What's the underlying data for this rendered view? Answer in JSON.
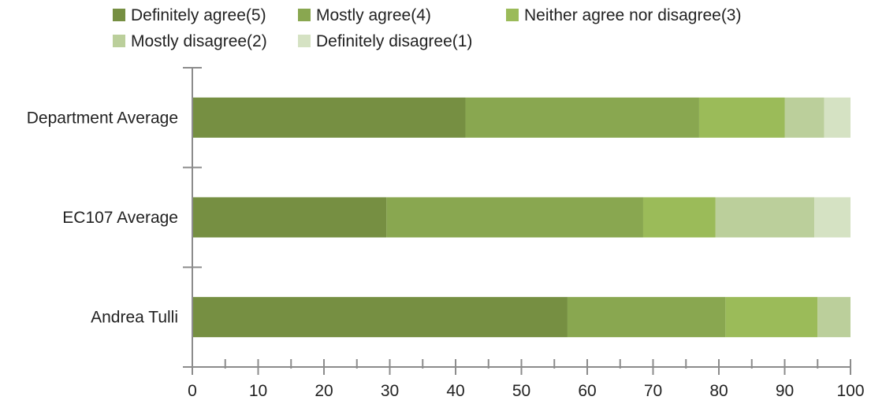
{
  "chart_data": {
    "type": "bar",
    "orientation": "horizontal",
    "stacked": true,
    "categories": [
      "Department Average",
      "EC107 Average",
      "Andrea Tulli"
    ],
    "series": [
      {
        "name": "Definitely agree(5)",
        "color": "#768f42",
        "values": [
          41.5,
          29.5,
          57.0
        ]
      },
      {
        "name": "Mostly agree(4)",
        "color": "#89a750",
        "values": [
          35.5,
          39.0,
          24.0
        ]
      },
      {
        "name": "Neither agree nor disagree(3)",
        "color": "#9bbb59",
        "values": [
          13.0,
          11.0,
          14.0
        ]
      },
      {
        "name": "Mostly disagree(2)",
        "color": "#bbcf9b",
        "values": [
          6.0,
          15.0,
          5.0
        ]
      },
      {
        "name": "Definitely disagree(1)",
        "color": "#d5e2c3",
        "values": [
          4.0,
          5.5,
          0.0
        ]
      }
    ],
    "xlim": [
      0,
      100
    ],
    "x_ticks": [
      "0",
      "10",
      "20",
      "30",
      "40",
      "50",
      "60",
      "70",
      "80",
      "90",
      "100"
    ],
    "xlabel": "",
    "ylabel": "",
    "title": "",
    "grid": false,
    "legend_position": "top"
  }
}
